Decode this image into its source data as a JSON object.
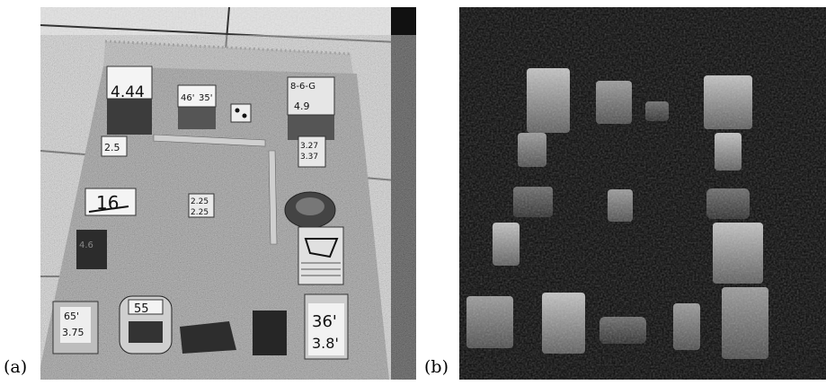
{
  "figure": {
    "panels": [
      {
        "label": "(a)",
        "image": "grayscale-photo-rug-with-labeled-boxes"
      },
      {
        "label": "(b)",
        "image": "depth-map-of-boxes"
      }
    ]
  },
  "box_labels": {
    "b1": "4.44",
    "b2a": "46'",
    "b2b": "35'",
    "b3a": "8-6-G",
    "b3b": "4.9",
    "b4": "2.5",
    "b5a": "3.27",
    "b5b": "3.37",
    "b6": "16",
    "b7a": "2.25",
    "b7b": "2.25",
    "b8": "4.6",
    "b9a": "65'",
    "b9b": "3.75",
    "b10": "55",
    "b11a": "36'",
    "b11b": "3.8'"
  },
  "colors": {
    "rug": "#8c8c8c",
    "floor": "#e6e6e6",
    "depth_background": "#050505"
  }
}
